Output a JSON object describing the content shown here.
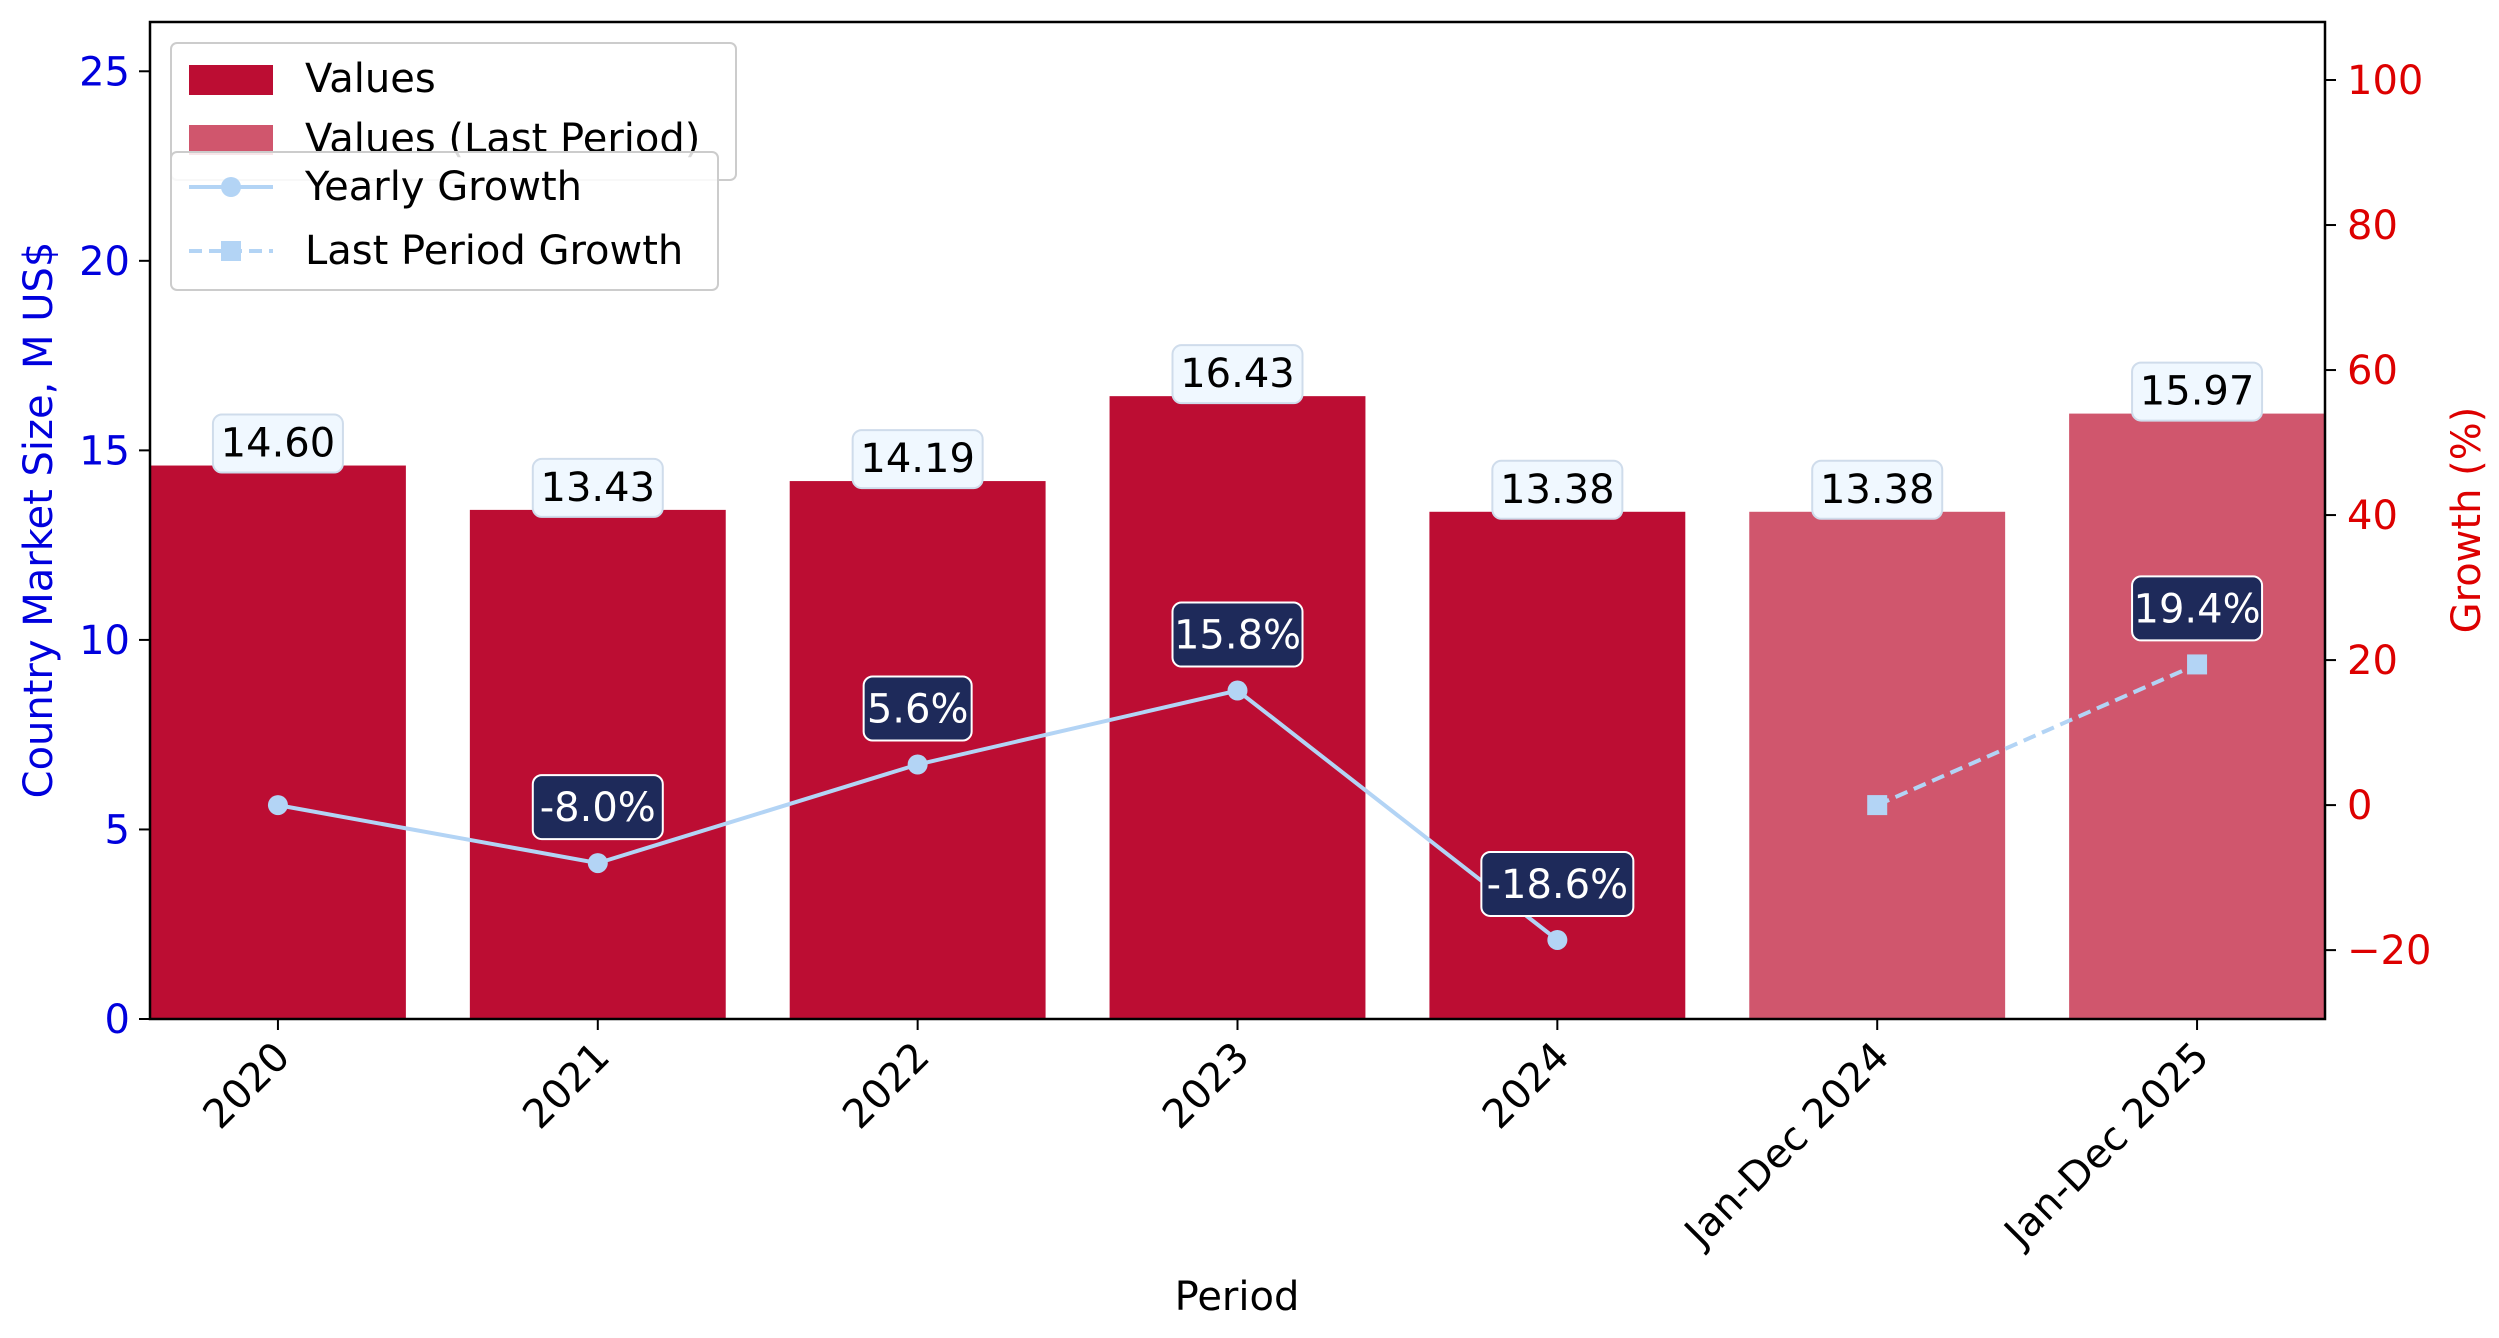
{
  "chart_data": {
    "type": "bar",
    "categories": [
      "2020",
      "2021",
      "2022",
      "2023",
      "2024",
      "Jan-Dec 2024",
      "Jan-Dec 2025"
    ],
    "series": [
      {
        "name": "Values",
        "kind": "bar",
        "axis": "left",
        "values": [
          14.6,
          13.43,
          14.19,
          16.43,
          13.38,
          null,
          null
        ],
        "labels": [
          "14.60",
          "13.43",
          "14.19",
          "16.43",
          "13.38",
          null,
          null
        ],
        "color": "#bc0d33"
      },
      {
        "name": "Values (Last Period)",
        "kind": "bar",
        "axis": "left",
        "values": [
          null,
          null,
          null,
          null,
          null,
          13.38,
          15.97
        ],
        "labels": [
          null,
          null,
          null,
          null,
          null,
          "13.38",
          "15.97"
        ],
        "color": "#d0566d"
      },
      {
        "name": "Yearly Growth",
        "kind": "line",
        "marker": "circle",
        "dash": "solid",
        "axis": "right",
        "values": [
          0.0,
          -8.0,
          5.6,
          15.8,
          -18.6,
          null,
          null
        ],
        "labels": [
          null,
          "-8.0%",
          "5.6%",
          "15.8%",
          "-18.6%",
          null,
          null
        ],
        "color": "#b3d4f5"
      },
      {
        "name": "Last Period Growth",
        "kind": "line",
        "marker": "square",
        "dash": "dashed",
        "axis": "right",
        "values": [
          null,
          null,
          null,
          null,
          null,
          0.0,
          19.4
        ],
        "labels": [
          null,
          null,
          null,
          null,
          null,
          null,
          "19.4%"
        ],
        "color": "#b3d4f5"
      }
    ],
    "xlabel": "Period",
    "ylabel": "Country Market Size, M US$",
    "y2label": "Growth (%)",
    "ylim": [
      0,
      26.3
    ],
    "y2lim": [
      -29.5,
      108
    ],
    "yticks": [
      0,
      5,
      10,
      15,
      20,
      25
    ],
    "y2ticks": [
      -20,
      0,
      20,
      40,
      60,
      80,
      100
    ],
    "y2tick_labels": [
      "−20",
      "0",
      "20",
      "40",
      "60",
      "80",
      "100"
    ],
    "grid": false,
    "legend_placement": "top-left",
    "colors": {
      "left_axis": "#0000dd",
      "right_axis": "#dd0000",
      "growth_label_bg": "#1e2a5a",
      "value_label_bg": "#f0f8ff"
    }
  }
}
